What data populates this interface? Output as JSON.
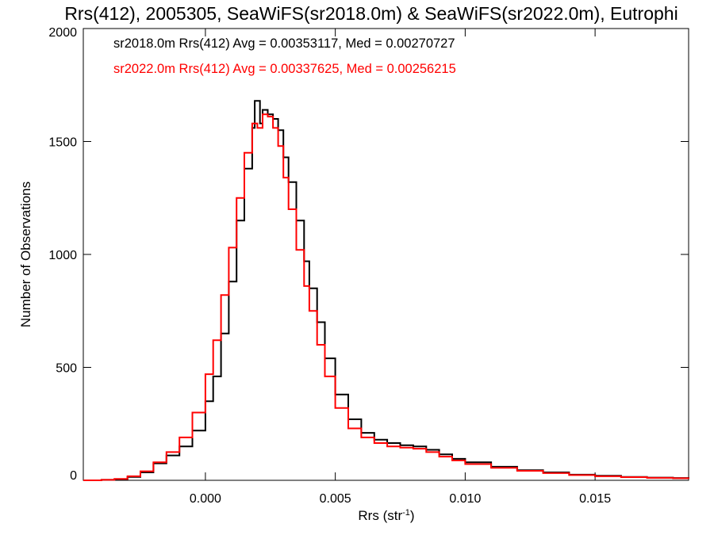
{
  "chart_data": {
    "type": "line",
    "title": "Rrs(412), 2005305, SeaWiFS(sr2018.0m) & SeaWiFS(sr2022.0m), Eutrophi",
    "xlabel": "Rrs (str",
    "xlabel_sup": "-1",
    "xlabel_close": ")",
    "ylabel": "Number of Observations",
    "xlim": [
      -0.0047,
      0.0186
    ],
    "ylim": [
      0,
      2000
    ],
    "xticks": [
      0.0,
      0.005,
      0.01,
      0.015
    ],
    "xtick_labels": [
      "0.000",
      "0.005",
      "0.010",
      "0.015"
    ],
    "yticks": [
      0,
      500,
      1000,
      1500,
      2000
    ],
    "ytick_labels": [
      "0",
      "500",
      "1000",
      "1500",
      "2000"
    ],
    "grid": false,
    "legend_position": "top-left",
    "series": [
      {
        "label": "sr2018.0m Rrs(412) Avg = 0.00353117, Med = 0.00270727",
        "color": "#000000",
        "points": [
          [
            -0.0047,
            0
          ],
          [
            -0.004,
            2
          ],
          [
            -0.0035,
            5
          ],
          [
            -0.003,
            15
          ],
          [
            -0.0025,
            35
          ],
          [
            -0.002,
            75
          ],
          [
            -0.0015,
            110
          ],
          [
            -0.001,
            150
          ],
          [
            -0.0005,
            220
          ],
          [
            0.0,
            350
          ],
          [
            0.0003,
            460
          ],
          [
            0.0006,
            650
          ],
          [
            0.0009,
            880
          ],
          [
            0.0012,
            1150
          ],
          [
            0.0015,
            1380
          ],
          [
            0.0018,
            1560
          ],
          [
            0.0019,
            1680
          ],
          [
            0.0021,
            1580
          ],
          [
            0.0022,
            1640
          ],
          [
            0.0024,
            1620
          ],
          [
            0.0026,
            1600
          ],
          [
            0.0028,
            1550
          ],
          [
            0.003,
            1430
          ],
          [
            0.0032,
            1320
          ],
          [
            0.0035,
            1150
          ],
          [
            0.0038,
            970
          ],
          [
            0.004,
            850
          ],
          [
            0.0043,
            700
          ],
          [
            0.0046,
            540
          ],
          [
            0.005,
            380
          ],
          [
            0.0055,
            270
          ],
          [
            0.006,
            210
          ],
          [
            0.0065,
            180
          ],
          [
            0.007,
            165
          ],
          [
            0.0075,
            155
          ],
          [
            0.008,
            150
          ],
          [
            0.0085,
            135
          ],
          [
            0.009,
            115
          ],
          [
            0.0095,
            95
          ],
          [
            0.01,
            80
          ],
          [
            0.011,
            60
          ],
          [
            0.012,
            45
          ],
          [
            0.013,
            35
          ],
          [
            0.014,
            25
          ],
          [
            0.015,
            20
          ],
          [
            0.016,
            15
          ],
          [
            0.017,
            12
          ],
          [
            0.018,
            10
          ],
          [
            0.0186,
            8
          ]
        ]
      },
      {
        "label": "sr2022.0m Rrs(412) Avg = 0.00337625, Med = 0.00256215",
        "color": "#ff0000",
        "points": [
          [
            -0.0047,
            0
          ],
          [
            -0.004,
            2
          ],
          [
            -0.0035,
            6
          ],
          [
            -0.003,
            18
          ],
          [
            -0.0025,
            40
          ],
          [
            -0.002,
            80
          ],
          [
            -0.0015,
            125
          ],
          [
            -0.001,
            190
          ],
          [
            -0.0005,
            300
          ],
          [
            0.0,
            470
          ],
          [
            0.0003,
            620
          ],
          [
            0.0006,
            820
          ],
          [
            0.0009,
            1030
          ],
          [
            0.0012,
            1250
          ],
          [
            0.0015,
            1450
          ],
          [
            0.0018,
            1580
          ],
          [
            0.002,
            1560
          ],
          [
            0.0022,
            1620
          ],
          [
            0.0024,
            1610
          ],
          [
            0.0026,
            1560
          ],
          [
            0.0028,
            1480
          ],
          [
            0.003,
            1340
          ],
          [
            0.0032,
            1200
          ],
          [
            0.0035,
            1020
          ],
          [
            0.0038,
            860
          ],
          [
            0.004,
            750
          ],
          [
            0.0043,
            600
          ],
          [
            0.0046,
            460
          ],
          [
            0.005,
            320
          ],
          [
            0.0055,
            230
          ],
          [
            0.006,
            190
          ],
          [
            0.0065,
            165
          ],
          [
            0.007,
            150
          ],
          [
            0.0075,
            145
          ],
          [
            0.008,
            140
          ],
          [
            0.0085,
            125
          ],
          [
            0.009,
            105
          ],
          [
            0.0095,
            88
          ],
          [
            0.01,
            72
          ],
          [
            0.011,
            55
          ],
          [
            0.012,
            42
          ],
          [
            0.013,
            32
          ],
          [
            0.014,
            23
          ],
          [
            0.015,
            18
          ],
          [
            0.016,
            14
          ],
          [
            0.017,
            11
          ],
          [
            0.018,
            9
          ],
          [
            0.0186,
            7
          ]
        ]
      }
    ]
  }
}
